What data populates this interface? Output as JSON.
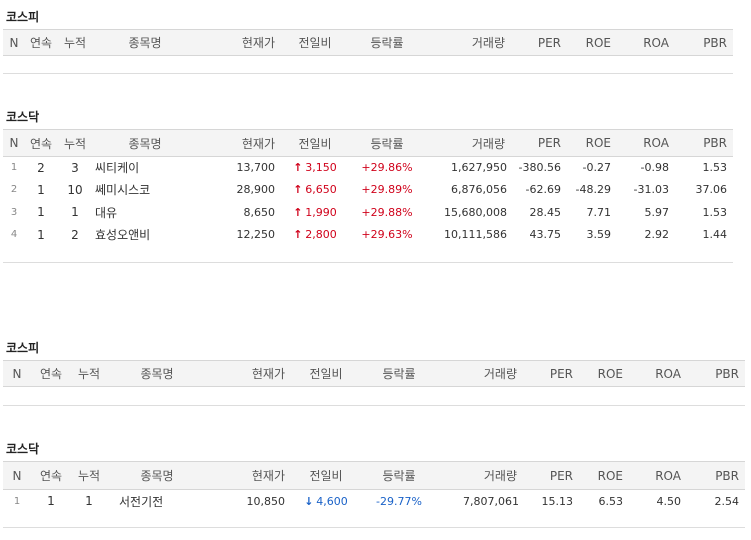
{
  "sections": [
    {
      "title": "코스피",
      "headers": [
        "N",
        "연속",
        "누적",
        "종목명",
        "현재가",
        "전일비",
        "등락률",
        "거래량",
        "PER",
        "ROE",
        "ROA",
        "PBR"
      ],
      "rows": []
    },
    {
      "title": "코스닥",
      "headers": [
        "N",
        "연속",
        "누적",
        "종목명",
        "현재가",
        "전일비",
        "등락률",
        "거래량",
        "PER",
        "ROE",
        "ROA",
        "PBR"
      ],
      "rows": [
        {
          "n": "1",
          "streak": "2",
          "cum": "3",
          "name": "씨티케이",
          "price": "13,700",
          "dir": "up",
          "change": "3,150",
          "rate": "+29.86%",
          "volume": "1,627,950",
          "per": "-380.56",
          "roe": "-0.27",
          "roa": "-0.98",
          "pbr": "1.53"
        },
        {
          "n": "2",
          "streak": "1",
          "cum": "10",
          "name": "쎄미시스코",
          "price": "28,900",
          "dir": "up",
          "change": "6,650",
          "rate": "+29.89%",
          "volume": "6,876,056",
          "per": "-62.69",
          "roe": "-48.29",
          "roa": "-31.03",
          "pbr": "37.06"
        },
        {
          "n": "3",
          "streak": "1",
          "cum": "1",
          "name": "대유",
          "price": "8,650",
          "dir": "up",
          "change": "1,990",
          "rate": "+29.88%",
          "volume": "15,680,008",
          "per": "28.45",
          "roe": "7.71",
          "roa": "5.97",
          "pbr": "1.53"
        },
        {
          "n": "4",
          "streak": "1",
          "cum": "2",
          "name": "효성오앤비",
          "price": "12,250",
          "dir": "up",
          "change": "2,800",
          "rate": "+29.63%",
          "volume": "10,111,586",
          "per": "43.75",
          "roe": "3.59",
          "roa": "2.92",
          "pbr": "1.44"
        }
      ]
    },
    {
      "title": "코스피",
      "headers": [
        "N",
        "연속",
        "누적",
        "종목명",
        "현재가",
        "전일비",
        "등락률",
        "거래량",
        "PER",
        "ROE",
        "ROA",
        "PBR"
      ],
      "rows": []
    },
    {
      "title": "코스닥",
      "headers": [
        "N",
        "연속",
        "누적",
        "종목명",
        "현재가",
        "전일비",
        "등락률",
        "거래량",
        "PER",
        "ROE",
        "ROA",
        "PBR"
      ],
      "rows": [
        {
          "n": "1",
          "streak": "1",
          "cum": "1",
          "name": "서전기전",
          "price": "10,850",
          "dir": "down",
          "change": "4,600",
          "rate": "-29.77%",
          "volume": "7,807,061",
          "per": "15.13",
          "roe": "6.53",
          "roa": "4.50",
          "pbr": "2.54"
        }
      ]
    }
  ],
  "icons": {
    "up": "red-up-arrow",
    "down": "blue-down-arrow"
  },
  "colors": {
    "up": "#d0021b",
    "down": "#1a62c8",
    "header_bg": "#f4f4f4"
  }
}
